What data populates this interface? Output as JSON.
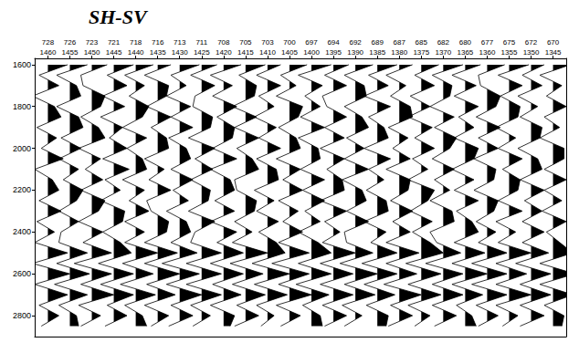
{
  "chart_data": {
    "type": "wiggle",
    "title": "SH-SV",
    "color": "#000000",
    "grid": false,
    "x": [
      1460,
      1455,
      1450,
      1445,
      1440,
      1435,
      1430,
      1425,
      1420,
      1415,
      1410,
      1405,
      1400,
      1395,
      1390,
      1385,
      1380,
      1375,
      1370,
      1365,
      1360,
      1355,
      1350,
      1345
    ],
    "y": [
      1600,
      1650,
      1700,
      1750,
      1800,
      1850,
      1900,
      1950,
      2000,
      2050,
      2100,
      2150,
      2200,
      2250,
      2300,
      2350,
      2400,
      2450,
      2500,
      2550,
      2600,
      2650,
      2700,
      2750,
      2800,
      2850
    ],
    "values": [
      [
        0.9,
        -0.4,
        0.5,
        -0.7,
        0.3,
        0.6,
        -0.5,
        0.4,
        -0.3,
        0.7,
        -0.6,
        0.2,
        0.5,
        -0.4,
        0.6,
        -0.5,
        0.3,
        -0.6,
        0.9,
        -0.7,
        1.0,
        -0.6,
        0.9,
        -0.4,
        0.5,
        -0.3
      ],
      [
        0.8,
        -0.6,
        0.3,
        0.5,
        -0.6,
        0.4,
        0.6,
        -0.4,
        0.5,
        -0.5,
        0.4,
        -0.3,
        0.6,
        0.3,
        -0.5,
        0.4,
        -0.4,
        -0.5,
        0.8,
        -0.6,
        0.9,
        -0.7,
        0.8,
        -0.5,
        0.3,
        0.4
      ],
      [
        0.7,
        -0.5,
        -0.4,
        0.6,
        0.4,
        -0.5,
        0.3,
        0.6,
        -0.6,
        0.4,
        -0.3,
        0.5,
        -0.5,
        0.6,
        0.3,
        -0.6,
        0.5,
        -0.4,
        0.9,
        -0.8,
        0.9,
        -0.5,
        1.0,
        -0.6,
        0.4,
        -0.5
      ],
      [
        0.9,
        -0.3,
        0.6,
        -0.5,
        0.5,
        -0.6,
        0.4,
        -0.2,
        0.6,
        -0.5,
        0.7,
        -0.4,
        0.3,
        -0.6,
        0.5,
        0.4,
        -0.5,
        0.3,
        0.8,
        -0.7,
        0.9,
        -0.6,
        0.9,
        -0.3,
        0.6,
        -0.4
      ],
      [
        0.8,
        -0.5,
        0.4,
        -0.3,
        0.6,
        0.3,
        -0.6,
        0.5,
        -0.4,
        0.3,
        0.5,
        -0.6,
        0.4,
        -0.3,
        0.6,
        -0.5,
        0.4,
        -0.5,
        1.0,
        -0.6,
        0.8,
        -0.7,
        0.9,
        -0.5,
        0.3,
        0.5
      ],
      [
        0.6,
        -0.6,
        0.5,
        0.4,
        -0.5,
        0.6,
        -0.3,
        0.4,
        0.5,
        -0.6,
        0.3,
        -0.4,
        0.6,
        -0.5,
        -0.3,
        0.5,
        0.4,
        -0.6,
        0.9,
        -0.6,
        1.0,
        -0.5,
        0.8,
        -0.6,
        0.5,
        -0.3
      ],
      [
        0.9,
        -0.4,
        0.3,
        -0.6,
        0.5,
        -0.4,
        0.6,
        -0.5,
        0.3,
        0.5,
        -0.4,
        0.6,
        -0.3,
        0.4,
        -0.6,
        0.3,
        0.5,
        -0.4,
        0.8,
        -0.8,
        0.9,
        -0.6,
        1.0,
        -0.4,
        0.6,
        -0.5
      ],
      [
        0.7,
        -0.5,
        0.6,
        -0.3,
        -0.4,
        0.5,
        0.4,
        -0.6,
        0.6,
        -0.3,
        0.5,
        -0.5,
        0.4,
        0.3,
        -0.6,
        0.6,
        -0.3,
        -0.5,
        0.9,
        -0.7,
        0.9,
        -0.7,
        0.9,
        -0.5,
        0.4,
        -0.4
      ],
      [
        0.8,
        -0.6,
        0.4,
        -0.5,
        0.6,
        -0.3,
        0.5,
        0.4,
        -0.5,
        0.6,
        -0.6,
        0.3,
        0.5,
        -0.4,
        0.5,
        -0.6,
        0.6,
        -0.3,
        0.9,
        -0.6,
        0.9,
        -0.5,
        0.8,
        -0.6,
        0.5,
        0.3
      ],
      [
        0.9,
        -0.3,
        0.5,
        0.4,
        -0.6,
        0.5,
        -0.5,
        0.6,
        -0.4,
        0.3,
        0.6,
        -0.5,
        -0.4,
        0.5,
        0.4,
        -0.5,
        0.3,
        -0.6,
        1.0,
        -0.7,
        0.8,
        -0.6,
        0.9,
        -0.4,
        0.6,
        -0.5
      ],
      [
        0.6,
        -0.5,
        0.6,
        -0.4,
        0.3,
        -0.6,
        0.4,
        -0.4,
        0.6,
        -0.5,
        0.4,
        0.5,
        -0.6,
        0.3,
        -0.5,
        0.5,
        -0.4,
        0.4,
        0.8,
        -0.7,
        1.0,
        -0.6,
        0.9,
        -0.5,
        0.3,
        -0.3
      ],
      [
        0.8,
        -0.4,
        0.3,
        -0.6,
        0.6,
        0.4,
        -0.5,
        0.3,
        0.5,
        -0.6,
        0.5,
        -0.3,
        0.6,
        -0.5,
        0.4,
        -0.3,
        0.6,
        -0.5,
        0.9,
        -0.8,
        0.9,
        -0.5,
        1.0,
        -0.6,
        0.5,
        -0.4
      ],
      [
        0.9,
        -0.6,
        0.5,
        -0.3,
        0.4,
        -0.5,
        0.6,
        -0.6,
        0.3,
        0.4,
        -0.5,
        0.6,
        -0.4,
        0.6,
        -0.3,
        0.4,
        -0.6,
        0.3,
        0.9,
        -0.6,
        0.9,
        -0.7,
        0.8,
        -0.4,
        0.4,
        0.5
      ],
      [
        0.7,
        -0.4,
        0.6,
        -0.5,
        -0.3,
        0.6,
        -0.4,
        0.5,
        -0.6,
        0.5,
        -0.3,
        0.4,
        0.5,
        -0.6,
        0.6,
        -0.4,
        0.3,
        -0.5,
        1.0,
        -0.6,
        0.9,
        -0.6,
        0.9,
        -0.5,
        0.6,
        -0.4
      ],
      [
        0.8,
        -0.5,
        0.4,
        0.5,
        -0.5,
        0.3,
        0.6,
        -0.4,
        0.4,
        -0.5,
        0.6,
        -0.6,
        0.3,
        0.5,
        -0.4,
        0.6,
        -0.5,
        -0.4,
        0.8,
        -0.7,
        1.0,
        -0.5,
        0.9,
        -0.6,
        0.3,
        -0.5
      ],
      [
        0.9,
        -0.4,
        0.5,
        -0.6,
        0.6,
        -0.4,
        0.3,
        0.5,
        -0.6,
        0.6,
        -0.4,
        0.3,
        -0.5,
        0.4,
        0.5,
        -0.6,
        0.4,
        -0.3,
        0.9,
        -0.7,
        0.9,
        -0.6,
        0.8,
        -0.5,
        0.5,
        0.4
      ],
      [
        0.6,
        -0.6,
        0.3,
        -0.4,
        0.5,
        0.6,
        -0.5,
        0.4,
        -0.3,
        0.5,
        -0.6,
        0.5,
        0.4,
        -0.4,
        0.6,
        -0.3,
        0.5,
        -0.6,
        0.9,
        -0.6,
        0.8,
        -0.7,
        1.0,
        -0.4,
        0.6,
        -0.5
      ],
      [
        0.8,
        -0.3,
        0.6,
        -0.5,
        0.4,
        -0.6,
        0.5,
        -0.3,
        0.6,
        -0.4,
        0.3,
        -0.6,
        0.6,
        0.3,
        -0.5,
        0.5,
        -0.4,
        0.4,
        1.0,
        -0.7,
        0.9,
        -0.6,
        0.9,
        -0.6,
        0.4,
        -0.3
      ],
      [
        0.9,
        -0.5,
        0.4,
        0.3,
        -0.6,
        0.5,
        -0.4,
        0.6,
        0.3,
        -0.5,
        0.5,
        -0.4,
        0.3,
        -0.6,
        0.4,
        0.5,
        -0.6,
        -0.3,
        0.8,
        -0.8,
        0.9,
        -0.5,
        0.9,
        -0.5,
        0.6,
        -0.4
      ],
      [
        0.7,
        -0.6,
        0.5,
        -0.5,
        0.6,
        -0.3,
        0.4,
        -0.5,
        0.6,
        0.4,
        -0.6,
        0.4,
        -0.5,
        0.6,
        -0.4,
        0.3,
        0.6,
        -0.5,
        0.9,
        -0.6,
        1.0,
        -0.6,
        0.8,
        -0.4,
        0.3,
        0.5
      ],
      [
        0.8,
        -0.4,
        -0.3,
        0.6,
        0.4,
        -0.5,
        0.6,
        -0.4,
        0.5,
        -0.6,
        0.4,
        0.3,
        -0.6,
        0.5,
        0.3,
        -0.5,
        0.4,
        -0.4,
        0.9,
        -0.7,
        0.9,
        -0.7,
        0.9,
        -0.5,
        0.5,
        -0.4
      ],
      [
        0.9,
        -0.5,
        0.6,
        -0.4,
        0.5,
        0.4,
        -0.6,
        0.3,
        -0.5,
        0.6,
        -0.3,
        0.5,
        0.4,
        -0.5,
        0.6,
        -0.6,
        0.3,
        -0.5,
        1.0,
        -0.6,
        0.8,
        -0.6,
        1.0,
        -0.6,
        0.4,
        -0.3
      ],
      [
        0.6,
        -0.4,
        0.5,
        -0.6,
        0.3,
        -0.5,
        0.5,
        0.4,
        -0.6,
        0.3,
        0.5,
        -0.5,
        0.6,
        -0.3,
        0.5,
        -0.4,
        0.6,
        -0.4,
        0.8,
        -0.7,
        0.9,
        -0.5,
        0.9,
        -0.5,
        0.6,
        -0.5
      ],
      [
        0.8,
        -0.6,
        0.4,
        -0.3,
        0.6,
        -0.4,
        0.3,
        -0.6,
        0.5,
        0.5,
        -0.4,
        0.6,
        -0.4,
        0.4,
        -0.5,
        0.6,
        -0.3,
        0.3,
        0.9,
        -0.6,
        1.0,
        -0.6,
        0.9,
        -0.4,
        0.5,
        0.4
      ]
    ],
    "xlim": [
      1463,
      1342
    ],
    "xticks": [
      1460,
      1455,
      1450,
      1445,
      1440,
      1435,
      1430,
      1425,
      1420,
      1415,
      1410,
      1405,
      1400,
      1395,
      1390,
      1385,
      1380,
      1375,
      1370,
      1365,
      1360,
      1355,
      1350,
      1345
    ],
    "x2lim": [
      1463,
      1342
    ],
    "x2ticks": [
      {
        "value": 1460,
        "label": "728"
      },
      {
        "value": 1455,
        "label": "726"
      },
      {
        "value": 1450,
        "label": "723"
      },
      {
        "value": 1445,
        "label": "721"
      },
      {
        "value": 1440,
        "label": "718"
      },
      {
        "value": 1435,
        "label": "716"
      },
      {
        "value": 1430,
        "label": "713"
      },
      {
        "value": 1425,
        "label": "711"
      },
      {
        "value": 1420,
        "label": "708"
      },
      {
        "value": 1415,
        "label": "705"
      },
      {
        "value": 1410,
        "label": "703"
      },
      {
        "value": 1405,
        "label": "700"
      },
      {
        "value": 1400,
        "label": "697"
      },
      {
        "value": 1395,
        "label": "694"
      },
      {
        "value": 1390,
        "label": "692"
      },
      {
        "value": 1385,
        "label": "689"
      },
      {
        "value": 1380,
        "label": "687"
      },
      {
        "value": 1375,
        "label": "685"
      },
      {
        "value": 1370,
        "label": "682"
      },
      {
        "value": 1365,
        "label": "680"
      },
      {
        "value": 1360,
        "label": "677"
      },
      {
        "value": 1355,
        "label": "675"
      },
      {
        "value": 1350,
        "label": "672"
      },
      {
        "value": 1345,
        "label": "670"
      }
    ],
    "ylim": [
      2900,
      1570
    ],
    "yticks": [
      1600,
      1800,
      2000,
      2200,
      2400,
      2600,
      2800
    ]
  }
}
